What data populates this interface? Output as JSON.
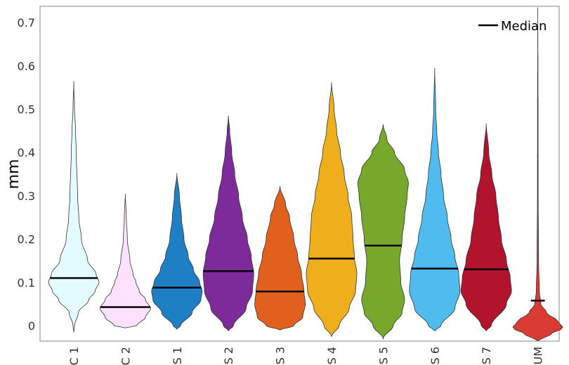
{
  "chart_data": {
    "type": "violin",
    "ylabel": "mm",
    "ylim": [
      -0.035,
      0.735
    ],
    "yticks": [
      0,
      0.1,
      0.2,
      0.3,
      0.4,
      0.5,
      0.6,
      0.7
    ],
    "ytick_labels": [
      "0",
      "0.1",
      "0.2",
      "0.3",
      "0.4",
      "0.5",
      "0.6",
      "0.7"
    ],
    "grid": false,
    "legend": {
      "placement": "top-right",
      "entries": [
        {
          "label": "Median",
          "color": "#000000"
        }
      ]
    },
    "categories": [
      "C 1",
      "C 2",
      "S 1",
      "S 2",
      "S 3",
      "S 4",
      "S 5",
      "S 6",
      "S 7",
      "UM"
    ],
    "series": [
      {
        "category": "C 1",
        "color": "#e3fbff",
        "median": 0.11,
        "min": -0.015,
        "max": 0.565,
        "density": [
          [
            -0.015,
            0.0
          ],
          [
            0.0,
            0.03
          ],
          [
            0.03,
            0.18
          ],
          [
            0.06,
            0.6
          ],
          [
            0.08,
            0.85
          ],
          [
            0.1,
            1.0
          ],
          [
            0.12,
            0.88
          ],
          [
            0.15,
            0.55
          ],
          [
            0.2,
            0.3
          ],
          [
            0.25,
            0.2
          ],
          [
            0.3,
            0.15
          ],
          [
            0.4,
            0.1
          ],
          [
            0.45,
            0.07
          ],
          [
            0.5,
            0.03
          ],
          [
            0.565,
            0.0
          ]
        ]
      },
      {
        "category": "C 2",
        "color": "#fde2ff",
        "median": 0.043,
        "min": -0.005,
        "max": 0.305,
        "density": [
          [
            -0.005,
            0.0
          ],
          [
            0.0,
            0.45
          ],
          [
            0.02,
            0.8
          ],
          [
            0.04,
            1.0
          ],
          [
            0.06,
            0.8
          ],
          [
            0.08,
            0.55
          ],
          [
            0.1,
            0.42
          ],
          [
            0.12,
            0.3
          ],
          [
            0.15,
            0.18
          ],
          [
            0.2,
            0.08
          ],
          [
            0.25,
            0.04
          ],
          [
            0.305,
            0.0
          ]
        ]
      },
      {
        "category": "S 1",
        "color": "#1f7fc4",
        "median": 0.088,
        "min": -0.008,
        "max": 0.352,
        "density": [
          [
            -0.008,
            0.0
          ],
          [
            0.0,
            0.15
          ],
          [
            0.03,
            0.6
          ],
          [
            0.06,
            0.95
          ],
          [
            0.08,
            1.0
          ],
          [
            0.1,
            0.9
          ],
          [
            0.13,
            0.65
          ],
          [
            0.16,
            0.45
          ],
          [
            0.2,
            0.28
          ],
          [
            0.25,
            0.18
          ],
          [
            0.3,
            0.1
          ],
          [
            0.352,
            0.0
          ]
        ]
      },
      {
        "category": "S 2",
        "color": "#7d2a9b",
        "median": 0.126,
        "min": -0.012,
        "max": 0.485,
        "density": [
          [
            -0.012,
            0.0
          ],
          [
            0.0,
            0.2
          ],
          [
            0.04,
            0.7
          ],
          [
            0.08,
            0.95
          ],
          [
            0.12,
            1.0
          ],
          [
            0.16,
            0.9
          ],
          [
            0.2,
            0.75
          ],
          [
            0.25,
            0.55
          ],
          [
            0.3,
            0.4
          ],
          [
            0.35,
            0.25
          ],
          [
            0.4,
            0.13
          ],
          [
            0.45,
            0.05
          ],
          [
            0.485,
            0.0
          ]
        ]
      },
      {
        "category": "S 3",
        "color": "#e2601e",
        "median": 0.079,
        "min": -0.01,
        "max": 0.322,
        "density": [
          [
            -0.01,
            0.0
          ],
          [
            0.0,
            0.55
          ],
          [
            0.02,
            0.9
          ],
          [
            0.05,
            1.0
          ],
          [
            0.08,
            0.95
          ],
          [
            0.12,
            0.85
          ],
          [
            0.16,
            0.7
          ],
          [
            0.2,
            0.55
          ],
          [
            0.25,
            0.38
          ],
          [
            0.28,
            0.22
          ],
          [
            0.322,
            0.0
          ]
        ]
      },
      {
        "category": "S 4",
        "color": "#efae1c",
        "median": 0.155,
        "min": -0.025,
        "max": 0.562,
        "density": [
          [
            -0.025,
            0.0
          ],
          [
            0.0,
            0.3
          ],
          [
            0.04,
            0.7
          ],
          [
            0.08,
            0.95
          ],
          [
            0.12,
            1.0
          ],
          [
            0.16,
            0.9
          ],
          [
            0.2,
            0.85
          ],
          [
            0.25,
            0.8
          ],
          [
            0.3,
            0.65
          ],
          [
            0.35,
            0.5
          ],
          [
            0.4,
            0.35
          ],
          [
            0.45,
            0.2
          ],
          [
            0.5,
            0.1
          ],
          [
            0.562,
            0.0
          ]
        ]
      },
      {
        "category": "S 5",
        "color": "#77a82b",
        "median": 0.185,
        "min": -0.03,
        "max": 0.465,
        "density": [
          [
            -0.03,
            0.0
          ],
          [
            0.0,
            0.4
          ],
          [
            0.03,
            0.75
          ],
          [
            0.06,
            0.85
          ],
          [
            0.1,
            0.7
          ],
          [
            0.15,
            0.65
          ],
          [
            0.2,
            0.75
          ],
          [
            0.25,
            0.85
          ],
          [
            0.3,
            0.95
          ],
          [
            0.33,
            1.0
          ],
          [
            0.36,
            0.85
          ],
          [
            0.4,
            0.45
          ],
          [
            0.43,
            0.15
          ],
          [
            0.465,
            0.0
          ]
        ]
      },
      {
        "category": "S 6",
        "color": "#4fbbee",
        "median": 0.132,
        "min": -0.012,
        "max": 0.595,
        "density": [
          [
            -0.012,
            0.0
          ],
          [
            0.0,
            0.25
          ],
          [
            0.04,
            0.8
          ],
          [
            0.08,
            1.0
          ],
          [
            0.12,
            0.95
          ],
          [
            0.16,
            0.8
          ],
          [
            0.2,
            0.65
          ],
          [
            0.25,
            0.5
          ],
          [
            0.3,
            0.35
          ],
          [
            0.35,
            0.25
          ],
          [
            0.4,
            0.15
          ],
          [
            0.45,
            0.08
          ],
          [
            0.5,
            0.04
          ],
          [
            0.595,
            0.0
          ]
        ]
      },
      {
        "category": "S 7",
        "color": "#b1142c",
        "median": 0.13,
        "min": -0.012,
        "max": 0.467,
        "density": [
          [
            -0.012,
            0.0
          ],
          [
            0.0,
            0.2
          ],
          [
            0.05,
            0.8
          ],
          [
            0.08,
            1.0
          ],
          [
            0.11,
            0.95
          ],
          [
            0.15,
            0.8
          ],
          [
            0.2,
            0.6
          ],
          [
            0.25,
            0.48
          ],
          [
            0.3,
            0.38
          ],
          [
            0.35,
            0.22
          ],
          [
            0.4,
            0.1
          ],
          [
            0.467,
            0.0
          ]
        ]
      },
      {
        "category": "UM",
        "color": "#d93a32",
        "median": 0.058,
        "min": -0.035,
        "max": 0.735,
        "density": [
          [
            -0.035,
            0.0
          ],
          [
            -0.02,
            0.5
          ],
          [
            -0.005,
            1.0
          ],
          [
            0.01,
            0.8
          ],
          [
            0.03,
            0.35
          ],
          [
            0.05,
            0.12
          ],
          [
            0.08,
            0.06
          ],
          [
            0.15,
            0.03
          ],
          [
            0.3,
            0.015
          ],
          [
            0.5,
            0.01
          ],
          [
            0.735,
            0.0
          ]
        ]
      }
    ]
  }
}
